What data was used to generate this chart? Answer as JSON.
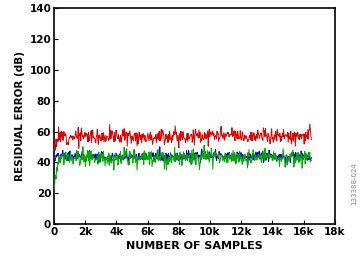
{
  "title": "",
  "xlabel": "NUMBER OF SAMPLES",
  "ylabel": "RESIDUAL ERROR (dB)",
  "xlim": [
    0,
    18000
  ],
  "ylim": [
    0,
    140
  ],
  "xticks": [
    0,
    2000,
    4000,
    6000,
    8000,
    10000,
    12000,
    14000,
    16000,
    18000
  ],
  "xticklabels": [
    "0",
    "2k",
    "4k",
    "6k",
    "8k",
    "10k",
    "12k",
    "14k",
    "16k",
    "18k"
  ],
  "yticks": [
    0,
    20,
    40,
    60,
    80,
    100,
    120,
    140
  ],
  "red_steady": 57.0,
  "blue_steady": 44.0,
  "green_start": 19.0,
  "green_steady": 43.5,
  "convergence_point": 800,
  "noise_std_red": 2.5,
  "noise_std_blue": 1.8,
  "noise_std_green": 2.5,
  "color_red": "#dd0000",
  "color_blue": "#0000cc",
  "color_green": "#00aa00",
  "linewidth": 0.7,
  "n_display": 500,
  "n_samples": 16500,
  "watermark": "133388-024",
  "bg_color": "#ffffff"
}
